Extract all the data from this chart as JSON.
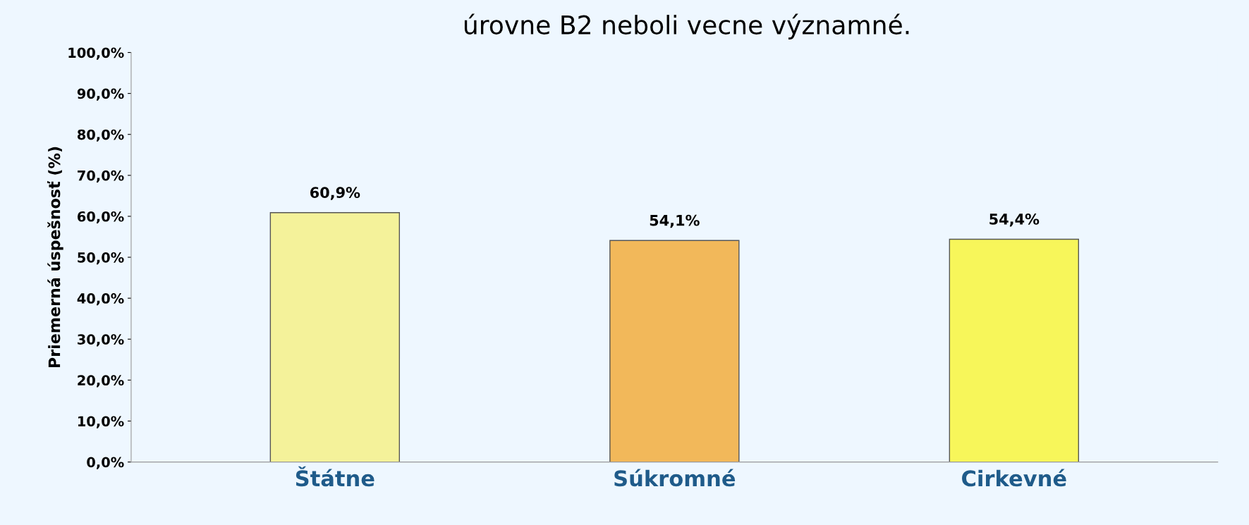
{
  "chart_data": {
    "type": "bar",
    "title": "úrovne B2 neboli vecne významné.",
    "ylabel": "Priemerná úspešnosť (%)",
    "categories": [
      "Štátne",
      "Súkromné",
      "Cirkevné"
    ],
    "values": [
      60.9,
      54.1,
      54.4
    ],
    "value_labels": [
      "60,9%",
      "54,1%",
      "54,4%"
    ],
    "colors": [
      "#f4f29a",
      "#f2b85a",
      "#f7f65a"
    ],
    "ylim": [
      0,
      100
    ],
    "yticks": [
      {
        "value": 0,
        "label": "0,0%"
      },
      {
        "value": 10,
        "label": "10,0%"
      },
      {
        "value": 20,
        "label": "20,0%"
      },
      {
        "value": 30,
        "label": "30,0%"
      },
      {
        "value": 40,
        "label": "40,0%"
      },
      {
        "value": 50,
        "label": "50,0%"
      },
      {
        "value": 60,
        "label": "60,0%"
      },
      {
        "value": 70,
        "label": "70,0%"
      },
      {
        "value": 80,
        "label": "80,0%"
      },
      {
        "value": 90,
        "label": "90,0%"
      },
      {
        "value": 100,
        "label": "100,0%"
      }
    ],
    "grid": false
  }
}
